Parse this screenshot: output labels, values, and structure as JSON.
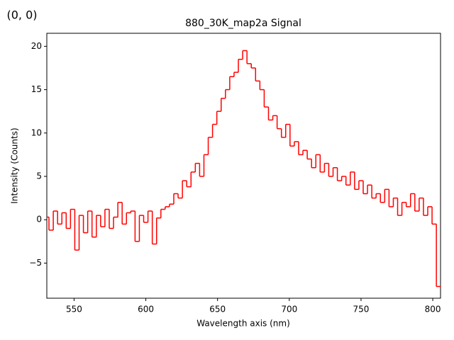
{
  "chart_data": {
    "type": "line",
    "drawstyle": "steps-mid",
    "title": "880_30K_map2a Signal",
    "annotation": "(0, 0)",
    "annotation_color": "#ff0000",
    "x_label": "Wavelength axis (nm)",
    "y_label": "Intensity (Counts)",
    "x": [
      531,
      534,
      537,
      540,
      543,
      546,
      549,
      552,
      555,
      558,
      561,
      564,
      567,
      570,
      573,
      576,
      579,
      582,
      585,
      588,
      591,
      594,
      597,
      600,
      603,
      606,
      609,
      612,
      615,
      618,
      621,
      624,
      627,
      630,
      633,
      636,
      639,
      642,
      645,
      648,
      651,
      654,
      657,
      660,
      663,
      666,
      669,
      672,
      675,
      678,
      681,
      684,
      687,
      690,
      693,
      696,
      699,
      702,
      705,
      708,
      711,
      714,
      717,
      720,
      723,
      726,
      729,
      732,
      735,
      738,
      741,
      744,
      747,
      750,
      753,
      756,
      759,
      762,
      765,
      768,
      771,
      774,
      777,
      780,
      783,
      786,
      789,
      792,
      795,
      798,
      801,
      804
    ],
    "series": [
      {
        "name": "Signal",
        "color": "#ff0000",
        "values": [
          0.3,
          -1.2,
          1.0,
          -0.5,
          0.8,
          -1.0,
          1.2,
          -3.5,
          0.5,
          -1.5,
          1.0,
          -2.0,
          0.5,
          -0.8,
          1.2,
          -1.0,
          0.3,
          2.0,
          -0.5,
          0.8,
          1.0,
          -2.5,
          0.5,
          -0.3,
          1.0,
          -2.8,
          0.2,
          1.2,
          1.5,
          1.8,
          3.0,
          2.5,
          4.5,
          3.8,
          5.5,
          6.5,
          5.0,
          7.5,
          9.5,
          11.0,
          12.5,
          14.0,
          15.0,
          16.5,
          17.0,
          18.5,
          19.5,
          18.0,
          17.5,
          16.0,
          15.0,
          13.0,
          11.5,
          12.0,
          10.5,
          9.5,
          11.0,
          8.5,
          9.0,
          7.5,
          8.0,
          7.0,
          6.0,
          7.5,
          5.5,
          6.5,
          5.0,
          6.0,
          4.5,
          5.0,
          4.0,
          5.5,
          3.5,
          4.5,
          3.0,
          4.0,
          2.5,
          3.0,
          2.0,
          3.5,
          1.5,
          2.5,
          0.5,
          2.0,
          1.5,
          3.0,
          1.0,
          2.5,
          0.5,
          1.5,
          -0.5,
          -7.7
        ]
      }
    ],
    "xlim": [
      531,
      805.4
    ],
    "ylim": [
      -9.05,
      21.5
    ],
    "xticks": [
      550,
      600,
      650,
      700,
      750,
      800
    ],
    "yticks": [
      {
        "value": -5,
        "label": "−5"
      },
      0,
      5,
      10,
      15,
      20
    ],
    "grid": false
  }
}
